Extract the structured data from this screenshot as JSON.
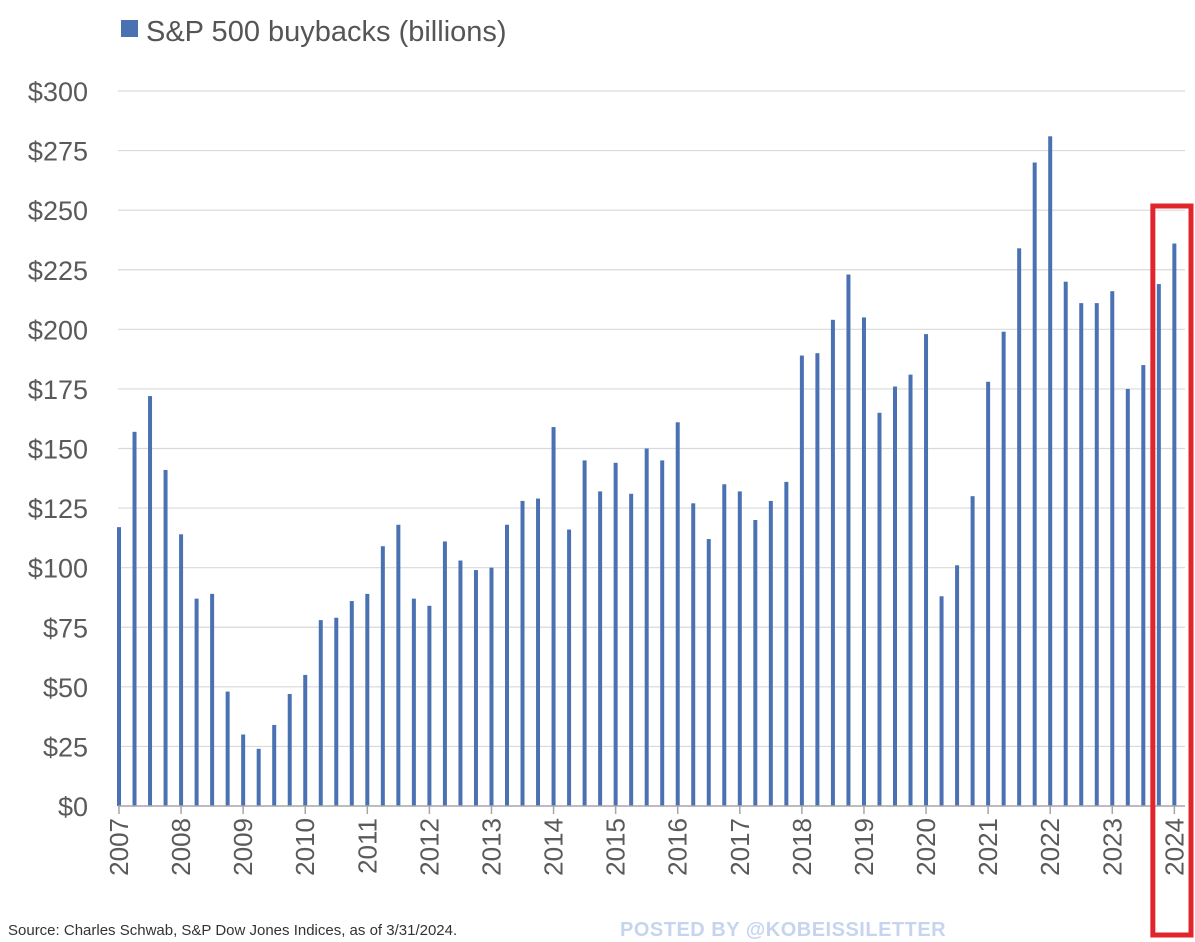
{
  "chart_data": {
    "type": "bar",
    "legend": "S&P 500 buybacks (billions)",
    "legend_placement": "top-left",
    "bar_color": "#4a72b2",
    "highlight_color": "#e0262c",
    "grid": true,
    "ylim": [
      0,
      300
    ],
    "y_ticks": [
      "$0",
      "$25",
      "$50",
      "$75",
      "$100",
      "$125",
      "$150",
      "$175",
      "$200",
      "$225",
      "$250",
      "$275",
      "$300"
    ],
    "y_tick_values": [
      0,
      25,
      50,
      75,
      100,
      125,
      150,
      175,
      200,
      225,
      250,
      275,
      300
    ],
    "x_tick_labels": [
      "2007",
      "2008",
      "2009",
      "2010",
      "2011",
      "2012",
      "2013",
      "2014",
      "2015",
      "2016",
      "2017",
      "2018",
      "2019",
      "2020",
      "2021",
      "2022",
      "2023",
      "2024"
    ],
    "x": [
      "Q1 2007",
      "Q2 2007",
      "Q3 2007",
      "Q4 2007",
      "Q1 2008",
      "Q2 2008",
      "Q3 2008",
      "Q4 2008",
      "Q1 2009",
      "Q2 2009",
      "Q3 2009",
      "Q4 2009",
      "Q1 2010",
      "Q2 2010",
      "Q3 2010",
      "Q4 2010",
      "Q1 2011",
      "Q2 2011",
      "Q3 2011",
      "Q4 2011",
      "Q1 2012",
      "Q2 2012",
      "Q3 2012",
      "Q4 2012",
      "Q1 2013",
      "Q2 2013",
      "Q3 2013",
      "Q4 2013",
      "Q1 2014",
      "Q2 2014",
      "Q3 2014",
      "Q4 2014",
      "Q1 2015",
      "Q2 2015",
      "Q3 2015",
      "Q4 2015",
      "Q1 2016",
      "Q2 2016",
      "Q3 2016",
      "Q4 2016",
      "Q1 2017",
      "Q2 2017",
      "Q3 2017",
      "Q4 2017",
      "Q1 2018",
      "Q2 2018",
      "Q3 2018",
      "Q4 2018",
      "Q1 2019",
      "Q2 2019",
      "Q3 2019",
      "Q4 2019",
      "Q1 2020",
      "Q2 2020",
      "Q3 2020",
      "Q4 2020",
      "Q1 2021",
      "Q2 2021",
      "Q3 2021",
      "Q4 2021",
      "Q1 2022",
      "Q2 2022",
      "Q3 2022",
      "Q4 2022",
      "Q1 2023",
      "Q2 2023",
      "Q3 2023",
      "Q4 2023",
      "Q1 2024"
    ],
    "values": [
      117,
      157,
      172,
      141,
      114,
      87,
      89,
      48,
      30,
      24,
      34,
      47,
      55,
      78,
      79,
      86,
      89,
      109,
      118,
      87,
      84,
      111,
      103,
      99,
      100,
      118,
      128,
      129,
      159,
      116,
      145,
      132,
      144,
      131,
      150,
      145,
      161,
      127,
      112,
      135,
      132,
      120,
      128,
      136,
      189,
      190,
      204,
      223,
      205,
      165,
      176,
      181,
      198,
      88,
      101,
      130,
      178,
      199,
      234,
      270,
      281,
      220,
      211,
      211,
      216,
      175,
      185,
      219,
      236
    ],
    "highlight_range": [
      "Q4 2023",
      "Q1 2024"
    ]
  },
  "footer": {
    "source": "Source: Charles Schwab, S&P Dow Jones Indices, as of 3/31/2024.",
    "posted_by": "POSTED BY @KOBEISSILETTER"
  }
}
